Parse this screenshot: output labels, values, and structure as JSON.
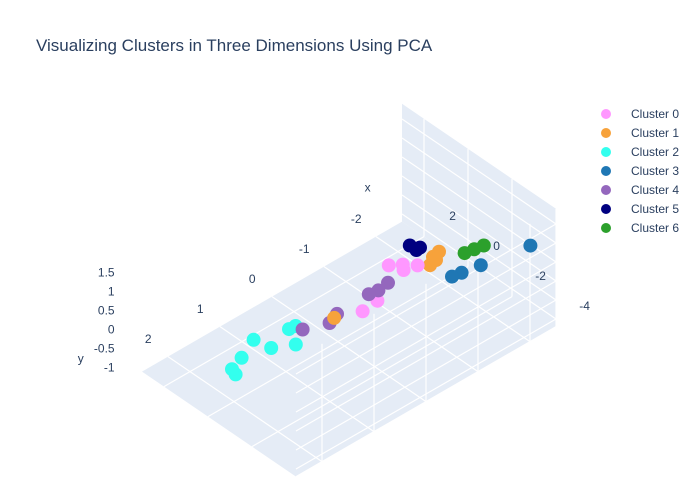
{
  "chart_data": {
    "type": "scatter",
    "title": "Visualizing Clusters in Three Dimensions Using PCA",
    "axes": {
      "x": {
        "title": "x",
        "ticks": [
          "-4",
          "-2",
          "0",
          "2"
        ]
      },
      "y": {
        "title": "y",
        "ticks": [
          "-2",
          "-1",
          "0",
          "1",
          "2"
        ]
      },
      "z": {
        "title": "",
        "ticks": [
          "-1",
          "-0.5",
          "0",
          "0.5",
          "1",
          "1.5"
        ]
      }
    },
    "legend_position": "top-right",
    "series": [
      {
        "name": "Cluster 0",
        "color": "#ff97ff",
        "points": [
          [
            -2.2,
            -0.6,
            1.2
          ],
          [
            -2.0,
            -0.4,
            1.3
          ],
          [
            -1.8,
            -0.5,
            1.0
          ],
          [
            -2.5,
            0.3,
            1.1
          ],
          [
            -2.3,
            0.5,
            0.9
          ],
          [
            -1.6,
            -0.3,
            1.2
          ]
        ]
      },
      {
        "name": "Cluster 1",
        "color": "#f7a23b",
        "points": [
          [
            -2.8,
            -0.7,
            1.5
          ],
          [
            -2.9,
            -0.6,
            1.7
          ],
          [
            -3.0,
            -0.5,
            1.6
          ],
          [
            -0.3,
            0.2,
            -0.3
          ],
          [
            -2.7,
            -0.8,
            1.6
          ]
        ]
      },
      {
        "name": "Cluster 2",
        "color": "#33ffee",
        "points": [
          [
            0.6,
            1.6,
            -0.6
          ],
          [
            0.4,
            1.8,
            -0.8
          ],
          [
            0.8,
            1.7,
            -0.9
          ],
          [
            -0.2,
            0.9,
            0.0
          ],
          [
            0.1,
            0.9,
            -0.2
          ],
          [
            0.2,
            1.2,
            -0.5
          ],
          [
            1.0,
            1.2,
            -0.6
          ],
          [
            0.5,
            0.6,
            -1.0
          ]
        ]
      },
      {
        "name": "Cluster 3",
        "color": "#1f77b4",
        "points": [
          [
            -2.6,
            -2.6,
            0.3
          ],
          [
            -2.0,
            -1.9,
            0.1
          ],
          [
            -1.6,
            -1.7,
            -0.1
          ],
          [
            -1.4,
            -1.6,
            -0.2
          ]
        ]
      },
      {
        "name": "Cluster 4",
        "color": "#9467bd",
        "points": [
          [
            -1.8,
            -0.2,
            0.9
          ],
          [
            -1.6,
            -0.1,
            0.7
          ],
          [
            -1.4,
            0.0,
            0.6
          ],
          [
            -0.9,
            0.4,
            0.2
          ],
          [
            -0.8,
            0.5,
            0.0
          ],
          [
            0.9,
            0.3,
            -1.0
          ]
        ]
      },
      {
        "name": "Cluster 5",
        "color": "#000080",
        "points": [
          [
            1.0,
            -2.0,
            -0.7
          ],
          [
            1.4,
            -2.1,
            -1.0
          ],
          [
            1.7,
            -2.1,
            -1.0
          ]
        ]
      },
      {
        "name": "Cluster 6",
        "color": "#2ca02c",
        "points": [
          [
            -1.9,
            -2.0,
            0.5
          ],
          [
            -1.7,
            -1.9,
            0.4
          ],
          [
            -1.5,
            -1.8,
            0.3
          ]
        ]
      }
    ]
  }
}
